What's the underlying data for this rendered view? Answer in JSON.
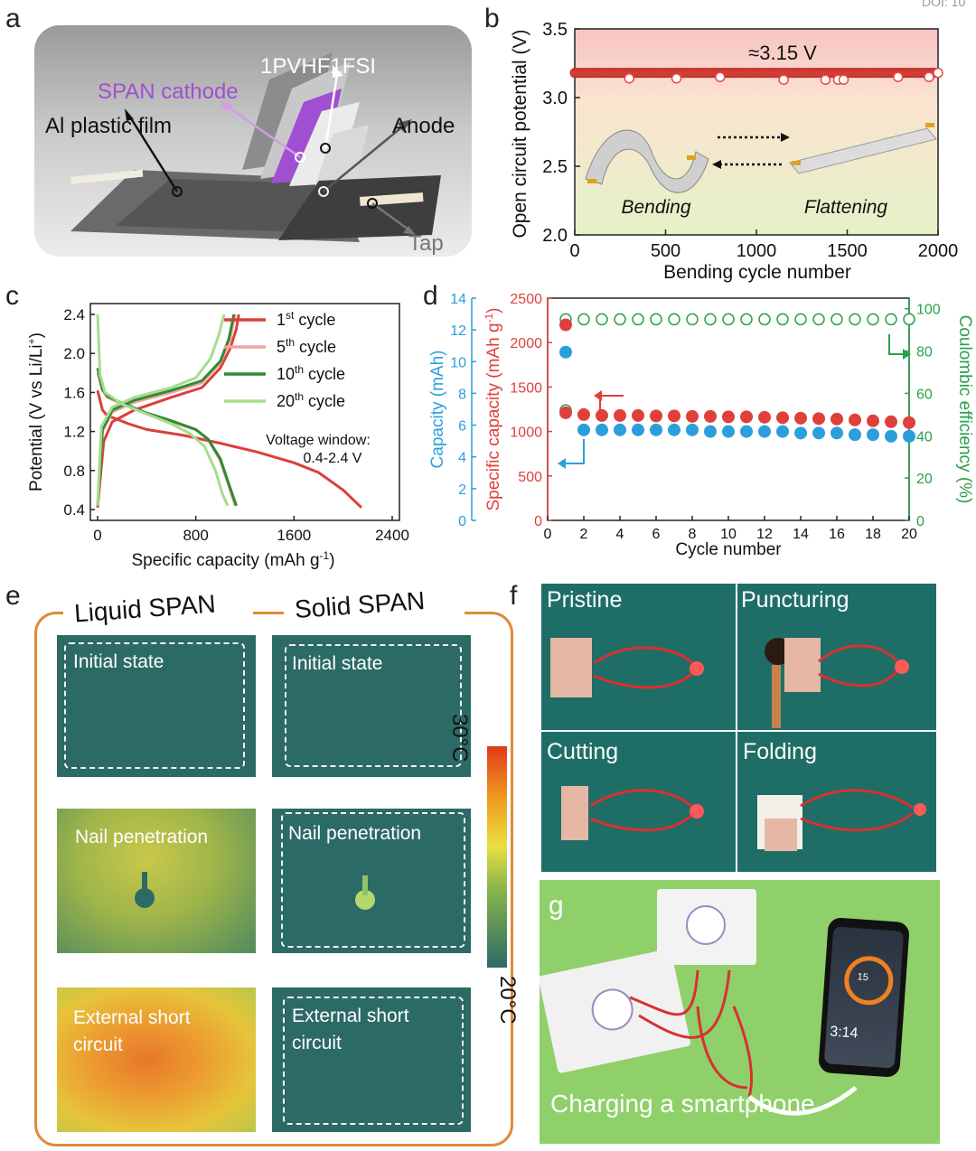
{
  "doi": "DOI: 10",
  "panels": {
    "a": "a",
    "b": "b",
    "c": "c",
    "d": "d",
    "e": "e",
    "f": "f",
    "g": "g"
  },
  "panel_a": {
    "labels": [
      "1PVHF1FSI",
      "SPAN cathode",
      "Al plastic film",
      "Anode",
      "Tap"
    ],
    "colors": {
      "span": "#a04fd2",
      "pale": "#ebebeb"
    }
  },
  "panel_b": {
    "annotation": "≈3.15 V",
    "ylabel": "Open circuit potential (V)",
    "xlabel": "Bending cycle number",
    "xticks": [
      "0",
      "500",
      "1000",
      "1500",
      "2000"
    ],
    "yticks": [
      "2.0",
      "2.5",
      "3.0",
      "3.5"
    ],
    "bending": "Bending",
    "flattening": "Flattening"
  },
  "panel_c": {
    "ylabel": "Potential (V vs Li/Li",
    "ylabel_sup": "+",
    "ylabel_end": ")",
    "xlabel": "Specific capacity (mAh g",
    "xlabel_sup": "-1",
    "xlabel_end": ")",
    "xticks": [
      "0",
      "800",
      "1600",
      "2400"
    ],
    "yticks": [
      "0.4",
      "0.8",
      "1.2",
      "1.6",
      "2.0",
      "2.4"
    ],
    "legend": [
      {
        "num": "1",
        "sup": "st",
        "text": " cycle",
        "color": "#d9403a"
      },
      {
        "num": "5",
        "sup": "th",
        "text": " cycle",
        "color": "#f4a3a0"
      },
      {
        "num": "10",
        "sup": "th",
        "text": " cycle",
        "color": "#2e8b34"
      },
      {
        "num": "20",
        "sup": "th",
        "text": " cycle",
        "color": "#a7dc8f"
      }
    ],
    "note1": "Voltage window:",
    "note2": "0.4-2.4 V"
  },
  "panel_d": {
    "xlabel": "Cycle number",
    "ylabel_left1": "Capacity (mAh)",
    "ylabel_left2": "Specific capacity (mAh g",
    "ylabel_left2_sup": "-1",
    "ylabel_left2_end": ")",
    "ylabel_right": "Coulombic efficiency (%)",
    "xticks": [
      "0",
      "2",
      "4",
      "6",
      "8",
      "10",
      "12",
      "14",
      "16",
      "18",
      "20"
    ],
    "ticks_mAh": [
      "0",
      "2",
      "4",
      "6",
      "8",
      "10",
      "12",
      "14"
    ],
    "ticks_spec": [
      "0",
      "500",
      "1000",
      "1500",
      "2000",
      "2500"
    ],
    "ticks_ce": [
      "0",
      "20",
      "40",
      "60",
      "80",
      "100"
    ]
  },
  "panel_e": {
    "liquid": "Liquid SPAN",
    "solid": "Solid SPAN",
    "initial": "Initial state",
    "nail": "Nail penetration",
    "short1": "External short",
    "short2": "circuit",
    "scale_hi": "30°C",
    "scale_lo": "20°C"
  },
  "panel_f": {
    "pristine": "Pristine",
    "puncturing": "Puncturing",
    "cutting": "Cutting",
    "folding": "Folding"
  },
  "panel_g": {
    "caption": "Charging a smartphone",
    "phone_time": "3:14",
    "phone_pct": "15"
  },
  "chart_data": [
    {
      "type": "scatter",
      "panel": "b",
      "xlabel": "Bending cycle number",
      "ylabel": "Open circuit potential (V)",
      "xlim": [
        0,
        2000
      ],
      "ylim": [
        2.0,
        3.5
      ],
      "series": [
        {
          "name": "OCV",
          "value": 3.18,
          "dips": [
            [
              300,
              3.14
            ],
            [
              560,
              3.14
            ],
            [
              800,
              3.15
            ],
            [
              1150,
              3.13
            ],
            [
              1380,
              3.13
            ],
            [
              1450,
              3.13
            ],
            [
              1480,
              3.13
            ],
            [
              1780,
              3.15
            ],
            [
              1950,
              3.15
            ],
            [
              2000,
              3.18
            ]
          ]
        }
      ],
      "annotation": "≈3.15 V"
    },
    {
      "type": "line",
      "panel": "c",
      "xlabel": "Specific capacity (mAh g-1)",
      "ylabel": "Potential (V vs Li/Li+)",
      "xlim": [
        0,
        2400
      ],
      "ylim": [
        0.4,
        2.4
      ],
      "series": [
        {
          "name": "1st cycle",
          "color": "#d9403a",
          "discharge": [
            [
              0,
              1.62
            ],
            [
              40,
              1.42
            ],
            [
              80,
              1.36
            ],
            [
              150,
              1.33
            ],
            [
              250,
              1.28
            ],
            [
              400,
              1.22
            ],
            [
              700,
              1.16
            ],
            [
              1000,
              1.08
            ],
            [
              1300,
              0.99
            ],
            [
              1600,
              0.88
            ],
            [
              1800,
              0.78
            ],
            [
              2000,
              0.6
            ],
            [
              2150,
              0.42
            ]
          ],
          "charge": [
            [
              0,
              0.42
            ],
            [
              50,
              1.1
            ],
            [
              120,
              1.3
            ],
            [
              300,
              1.42
            ],
            [
              600,
              1.55
            ],
            [
              850,
              1.65
            ],
            [
              1000,
              1.85
            ],
            [
              1080,
              2.05
            ],
            [
              1130,
              2.25
            ],
            [
              1150,
              2.4
            ]
          ]
        },
        {
          "name": "5th cycle",
          "color": "#f4a3a0",
          "discharge": [
            [
              0,
              1.8
            ],
            [
              40,
              1.62
            ],
            [
              80,
              1.55
            ],
            [
              200,
              1.48
            ],
            [
              400,
              1.38
            ],
            [
              600,
              1.3
            ],
            [
              800,
              1.22
            ],
            [
              900,
              1.12
            ],
            [
              1000,
              0.9
            ],
            [
              1080,
              0.6
            ],
            [
              1120,
              0.44
            ]
          ],
          "charge": [
            [
              0,
              0.44
            ],
            [
              40,
              1.2
            ],
            [
              120,
              1.4
            ],
            [
              300,
              1.5
            ],
            [
              600,
              1.6
            ],
            [
              850,
              1.7
            ],
            [
              1000,
              1.9
            ],
            [
              1080,
              2.15
            ],
            [
              1120,
              2.4
            ]
          ]
        },
        {
          "name": "10th cycle",
          "color": "#2e8b34",
          "discharge": [
            [
              0,
              1.85
            ],
            [
              40,
              1.63
            ],
            [
              80,
              1.56
            ],
            [
              200,
              1.49
            ],
            [
              400,
              1.39
            ],
            [
              600,
              1.31
            ],
            [
              800,
              1.22
            ],
            [
              900,
              1.12
            ],
            [
              1000,
              0.92
            ],
            [
              1080,
              0.62
            ],
            [
              1130,
              0.44
            ]
          ],
          "charge": [
            [
              0,
              0.44
            ],
            [
              40,
              1.22
            ],
            [
              120,
              1.42
            ],
            [
              300,
              1.52
            ],
            [
              600,
              1.62
            ],
            [
              850,
              1.72
            ],
            [
              1000,
              1.92
            ],
            [
              1070,
              2.15
            ],
            [
              1110,
              2.4
            ]
          ]
        },
        {
          "name": "20th cycle",
          "color": "#a7dc8f",
          "discharge": [
            [
              0,
              2.4
            ],
            [
              20,
              1.78
            ],
            [
              60,
              1.6
            ],
            [
              200,
              1.48
            ],
            [
              400,
              1.38
            ],
            [
              600,
              1.28
            ],
            [
              750,
              1.18
            ],
            [
              870,
              1.05
            ],
            [
              960,
              0.8
            ],
            [
              1020,
              0.55
            ],
            [
              1060,
              0.44
            ]
          ],
          "charge": [
            [
              0,
              0.44
            ],
            [
              30,
              1.25
            ],
            [
              120,
              1.45
            ],
            [
              300,
              1.55
            ],
            [
              600,
              1.65
            ],
            [
              800,
              1.75
            ],
            [
              920,
              1.95
            ],
            [
              990,
              2.2
            ],
            [
              1030,
              2.4
            ]
          ]
        }
      ],
      "annotations": [
        "Voltage window:",
        "0.4-2.4 V"
      ]
    },
    {
      "type": "scatter",
      "panel": "d",
      "xlabel": "Cycle number",
      "xlim": [
        0,
        20
      ],
      "series": [
        {
          "name": "Specific capacity (mAh g-1)",
          "color": "#e0403a",
          "axis": "left",
          "ylim": [
            0,
            2500
          ],
          "x": [
            1,
            1,
            2,
            3,
            4,
            5,
            6,
            7,
            8,
            9,
            10,
            11,
            12,
            13,
            14,
            15,
            16,
            17,
            18,
            19,
            20
          ],
          "y": [
            2200,
            1210,
            1190,
            1180,
            1180,
            1180,
            1175,
            1175,
            1170,
            1170,
            1165,
            1165,
            1160,
            1155,
            1150,
            1145,
            1140,
            1130,
            1120,
            1110,
            1100
          ]
        },
        {
          "name": "Capacity (mAh)",
          "color": "#2b9fdc",
          "axis": "left2",
          "ylim": [
            0,
            14
          ],
          "x": [
            1,
            2,
            3,
            4,
            5,
            6,
            7,
            8,
            9,
            10,
            11,
            12,
            13,
            14,
            15,
            16,
            17,
            18,
            19,
            20
          ],
          "y": [
            10.6,
            5.7,
            5.7,
            5.7,
            5.7,
            5.7,
            5.7,
            5.7,
            5.6,
            5.6,
            5.6,
            5.6,
            5.6,
            5.5,
            5.5,
            5.5,
            5.4,
            5.4,
            5.3,
            5.3
          ]
        },
        {
          "name": "Coulombic efficiency (%)",
          "color": "#2aa04a",
          "axis": "right",
          "ylim": [
            0,
            105
          ],
          "x": [
            1,
            1,
            2,
            3,
            4,
            5,
            6,
            7,
            8,
            9,
            10,
            11,
            12,
            13,
            14,
            15,
            16,
            17,
            18,
            19,
            20
          ],
          "y": [
            52,
            95,
            95,
            95,
            95,
            95,
            95,
            95,
            95,
            95,
            95,
            95,
            95,
            95,
            95,
            95,
            95,
            95,
            95,
            95,
            95
          ]
        }
      ]
    }
  ]
}
